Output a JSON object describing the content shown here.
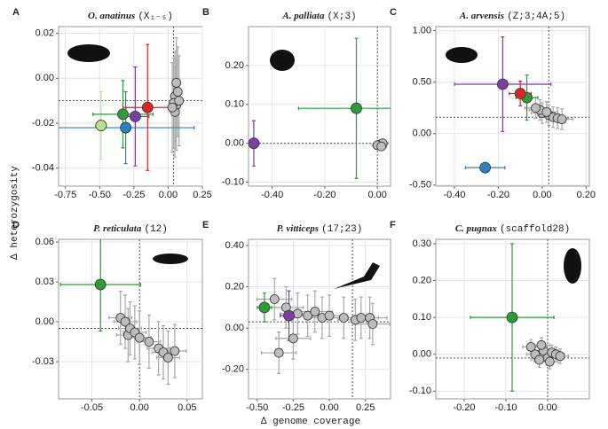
{
  "xlabel": "Δ genome coverage",
  "ylabel": "Δ heterozygosity",
  "chart_data": [
    {
      "type": "scatter",
      "letter": "A",
      "species": "O. anatinus",
      "chromosome": "(X₁₋₅)",
      "xlim": [
        -0.8,
        0.25
      ],
      "ylim": [
        -0.048,
        0.023
      ],
      "xticks": [
        {
          "value": -0.75,
          "label": "-0.75"
        },
        {
          "value": -0.5,
          "label": "-0.50"
        },
        {
          "value": -0.25,
          "label": "-0.25"
        },
        {
          "value": 0,
          "label": "0.00"
        },
        {
          "value": 0.25,
          "label": "0.25"
        }
      ],
      "yticks": [
        {
          "value": 0.02,
          "label": "0.02"
        },
        {
          "value": 0,
          "label": "0.00"
        },
        {
          "value": -0.02,
          "label": "-0.02"
        },
        {
          "value": -0.04,
          "label": "-0.04"
        }
      ],
      "vline": 0.04,
      "hline": -0.01,
      "grid": true,
      "points": [
        {
          "x": 0.05,
          "y": -0.008,
          "xerr": 0.03,
          "yerr": 0.02,
          "color": "#bdbdbd"
        },
        {
          "x": 0.06,
          "y": -0.012,
          "xerr": 0.03,
          "yerr": 0.02,
          "color": "#bdbdbd"
        },
        {
          "x": 0.04,
          "y": -0.011,
          "xerr": 0.03,
          "yerr": 0.02,
          "color": "#bdbdbd"
        },
        {
          "x": 0.07,
          "y": -0.006,
          "xerr": 0.03,
          "yerr": 0.02,
          "color": "#bdbdbd"
        },
        {
          "x": 0.05,
          "y": -0.015,
          "xerr": 0.03,
          "yerr": 0.02,
          "color": "#bdbdbd"
        },
        {
          "x": 0.03,
          "y": -0.013,
          "xerr": 0.03,
          "yerr": 0.02,
          "color": "#bdbdbd"
        },
        {
          "x": 0.06,
          "y": -0.002,
          "xerr": 0.03,
          "yerr": 0.02,
          "color": "#bdbdbd"
        },
        {
          "x": 0.08,
          "y": -0.01,
          "xerr": 0.03,
          "yerr": 0.02,
          "color": "#bdbdbd"
        },
        {
          "x": -0.31,
          "y": -0.022,
          "xerr": 0.5,
          "yerr": 0.016,
          "color": "#2f7fc1"
        },
        {
          "x": -0.49,
          "y": -0.021,
          "xerr": 0.04,
          "yerr": 0.015,
          "color": "#b9e08c"
        },
        {
          "x": -0.33,
          "y": -0.016,
          "xerr": 0.22,
          "yerr": 0.015,
          "color": "#2e9a3a"
        },
        {
          "x": -0.24,
          "y": -0.017,
          "xerr": 0.1,
          "yerr": 0.022,
          "color": "#7b3fa0"
        },
        {
          "x": -0.15,
          "y": -0.013,
          "xerr": 0.18,
          "yerr": 0.028,
          "color": "#d62728"
        }
      ]
    },
    {
      "type": "scatter",
      "letter": "B",
      "species": "A. palliata",
      "chromosome": "(X;3)",
      "xlim": [
        -0.49,
        0.05
      ],
      "ylim": [
        -0.11,
        0.3
      ],
      "xticks": [
        {
          "value": -0.4,
          "label": "-0.40"
        },
        {
          "value": -0.2,
          "label": "-0.20"
        },
        {
          "value": 0,
          "label": "0.00"
        }
      ],
      "yticks": [
        {
          "value": 0.2,
          "label": "0.20"
        },
        {
          "value": 0.1,
          "label": "0.10"
        },
        {
          "value": 0,
          "label": "0.00"
        },
        {
          "value": -0.1,
          "label": "-0.10"
        }
      ],
      "vline": 0,
      "hline": 0,
      "grid": true,
      "points": [
        {
          "x": 0.01,
          "y": -0.003,
          "xerr": 0.02,
          "yerr": 0.01,
          "color": "#bdbdbd"
        },
        {
          "x": 0.02,
          "y": 0,
          "xerr": 0.02,
          "yerr": 0.01,
          "color": "#bdbdbd"
        },
        {
          "x": 0,
          "y": -0.005,
          "xerr": 0.02,
          "yerr": 0.01,
          "color": "#bdbdbd"
        },
        {
          "x": 0.015,
          "y": -0.008,
          "xerr": 0.02,
          "yerr": 0.01,
          "color": "#bdbdbd"
        },
        {
          "x": -0.47,
          "y": 0,
          "xerr": 0.02,
          "yerr": 0.058,
          "color": "#7b3fa0"
        },
        {
          "x": -0.08,
          "y": 0.09,
          "xerr": 0.22,
          "yerr": 0.18,
          "color": "#2e9a3a"
        }
      ]
    },
    {
      "type": "scatter",
      "letter": "C",
      "species": "A. arvensis",
      "chromosome": "(Z;3;4A;5)",
      "xlim": [
        -0.485,
        0.215
      ],
      "ylim": [
        -0.51,
        1.04
      ],
      "xticks": [
        {
          "value": -0.4,
          "label": "-0.40"
        },
        {
          "value": -0.2,
          "label": "-0.20"
        },
        {
          "value": 0,
          "label": "0.00"
        },
        {
          "value": 0.2,
          "label": "0.20"
        }
      ],
      "yticks": [
        {
          "value": 1,
          "label": "1.00"
        },
        {
          "value": 0.5,
          "label": "0.50"
        },
        {
          "value": 0,
          "label": "0.00"
        },
        {
          "value": -0.5,
          "label": "-0.50"
        }
      ],
      "vline": 0.03,
      "hline": 0.16,
      "grid": true,
      "points": [
        {
          "x": 0,
          "y": 0.2,
          "xerr": 0.05,
          "yerr": 0.1,
          "color": "#bdbdbd"
        },
        {
          "x": 0.03,
          "y": 0.18,
          "xerr": 0.05,
          "yerr": 0.1,
          "color": "#bdbdbd"
        },
        {
          "x": 0.05,
          "y": 0.16,
          "xerr": 0.05,
          "yerr": 0.1,
          "color": "#bdbdbd"
        },
        {
          "x": -0.01,
          "y": 0.23,
          "xerr": 0.05,
          "yerr": 0.1,
          "color": "#bdbdbd"
        },
        {
          "x": 0.07,
          "y": 0.15,
          "xerr": 0.05,
          "yerr": 0.1,
          "color": "#bdbdbd"
        },
        {
          "x": 0.02,
          "y": 0.21,
          "xerr": 0.05,
          "yerr": 0.1,
          "color": "#bdbdbd"
        },
        {
          "x": 0.09,
          "y": 0.14,
          "xerr": 0.05,
          "yerr": 0.1,
          "color": "#bdbdbd"
        },
        {
          "x": -0.03,
          "y": 0.25,
          "xerr": 0.05,
          "yerr": 0.1,
          "color": "#bdbdbd"
        },
        {
          "x": -0.18,
          "y": 0.48,
          "xerr": 0.22,
          "yerr": 0.46,
          "color": "#7b3fa0"
        },
        {
          "x": -0.07,
          "y": 0.35,
          "xerr": 0.05,
          "yerr": 0.22,
          "color": "#2e9a3a"
        },
        {
          "x": -0.1,
          "y": 0.39,
          "xerr": 0.05,
          "yerr": 0.12,
          "color": "#d62728"
        },
        {
          "x": -0.26,
          "y": -0.33,
          "xerr": 0.09,
          "yerr": 0.05,
          "color": "#2f7fc1"
        }
      ]
    },
    {
      "type": "scatter",
      "letter": "D",
      "species": "P. reticulata",
      "chromosome": "(12)",
      "xlim": [
        -0.085,
        0.066
      ],
      "ylim": [
        -0.058,
        0.062
      ],
      "xticks": [
        {
          "value": -0.05,
          "label": "-0.05"
        },
        {
          "value": 0,
          "label": "0.00"
        },
        {
          "value": 0.05,
          "label": "0.05"
        }
      ],
      "yticks": [
        {
          "value": 0.06,
          "label": "0.06"
        },
        {
          "value": 0.03,
          "label": "0.03"
        },
        {
          "value": 0,
          "label": "0.00"
        },
        {
          "value": -0.03,
          "label": "-0.03"
        }
      ],
      "vline": 0,
      "hline": -0.005,
      "grid": true,
      "points": [
        {
          "x": -0.02,
          "y": 0.003,
          "xerr": 0.012,
          "yerr": 0.02,
          "color": "#bdbdbd"
        },
        {
          "x": -0.015,
          "y": 0,
          "xerr": 0.012,
          "yerr": 0.02,
          "color": "#bdbdbd"
        },
        {
          "x": -0.012,
          "y": -0.01,
          "xerr": 0.012,
          "yerr": 0.02,
          "color": "#bdbdbd"
        },
        {
          "x": -0.01,
          "y": -0.005,
          "xerr": 0.012,
          "yerr": 0.02,
          "color": "#bdbdbd"
        },
        {
          "x": -0.005,
          "y": -0.008,
          "xerr": 0.012,
          "yerr": 0.02,
          "color": "#bdbdbd"
        },
        {
          "x": 0,
          "y": -0.012,
          "xerr": 0.012,
          "yerr": 0.02,
          "color": "#bdbdbd"
        },
        {
          "x": 0.01,
          "y": -0.015,
          "xerr": 0.012,
          "yerr": 0.02,
          "color": "#bdbdbd"
        },
        {
          "x": 0.02,
          "y": -0.02,
          "xerr": 0.012,
          "yerr": 0.02,
          "color": "#bdbdbd"
        },
        {
          "x": 0.025,
          "y": -0.023,
          "xerr": 0.012,
          "yerr": 0.02,
          "color": "#bdbdbd"
        },
        {
          "x": 0.03,
          "y": -0.027,
          "xerr": 0.012,
          "yerr": 0.02,
          "color": "#bdbdbd"
        },
        {
          "x": 0.037,
          "y": -0.022,
          "xerr": 0.012,
          "yerr": 0.02,
          "color": "#bdbdbd"
        },
        {
          "x": -0.041,
          "y": 0.028,
          "xerr": 0.042,
          "yerr": 0.035,
          "color": "#2e9a3a"
        }
      ]
    },
    {
      "type": "scatter",
      "letter": "E",
      "species": "P. vitticeps",
      "chromosome": "(17;23)",
      "xlim": [
        -0.56,
        0.424
      ],
      "ylim": [
        -0.343,
        0.43
      ],
      "xticks": [
        {
          "value": -0.5,
          "label": "-0.50"
        },
        {
          "value": -0.25,
          "label": "-0.25"
        },
        {
          "value": 0,
          "label": "0.00"
        },
        {
          "value": 0.25,
          "label": "0.25"
        }
      ],
      "yticks": [
        {
          "value": 0.4,
          "label": "0.40"
        },
        {
          "value": 0.2,
          "label": "0.20"
        },
        {
          "value": 0,
          "label": "0.00"
        },
        {
          "value": -0.2,
          "label": "-0.20"
        }
      ],
      "vline": 0.16,
      "hline": 0.03,
      "grid": true,
      "points": [
        {
          "x": -0.38,
          "y": 0.14,
          "xerr": 0.12,
          "yerr": 0.1,
          "color": "#bdbdbd"
        },
        {
          "x": -0.3,
          "y": 0.1,
          "xerr": 0.12,
          "yerr": 0.1,
          "color": "#bdbdbd"
        },
        {
          "x": -0.22,
          "y": 0.07,
          "xerr": 0.12,
          "yerr": 0.1,
          "color": "#bdbdbd"
        },
        {
          "x": -0.15,
          "y": 0.06,
          "xerr": 0.12,
          "yerr": 0.1,
          "color": "#bdbdbd"
        },
        {
          "x": -0.05,
          "y": 0.05,
          "xerr": 0.12,
          "yerr": 0.1,
          "color": "#bdbdbd"
        },
        {
          "x": 0,
          "y": 0.06,
          "xerr": 0.12,
          "yerr": 0.1,
          "color": "#bdbdbd"
        },
        {
          "x": 0.1,
          "y": 0.05,
          "xerr": 0.12,
          "yerr": 0.1,
          "color": "#bdbdbd"
        },
        {
          "x": 0.18,
          "y": 0.04,
          "xerr": 0.12,
          "yerr": 0.1,
          "color": "#bdbdbd"
        },
        {
          "x": 0.22,
          "y": 0.05,
          "xerr": 0.12,
          "yerr": 0.1,
          "color": "#bdbdbd"
        },
        {
          "x": 0.28,
          "y": 0.05,
          "xerr": 0.12,
          "yerr": 0.1,
          "color": "#bdbdbd"
        },
        {
          "x": 0.3,
          "y": 0.02,
          "xerr": 0.12,
          "yerr": 0.1,
          "color": "#bdbdbd"
        },
        {
          "x": -0.1,
          "y": 0.08,
          "xerr": 0.12,
          "yerr": 0.1,
          "color": "#bdbdbd"
        },
        {
          "x": -0.35,
          "y": -0.12,
          "xerr": 0.12,
          "yerr": 0.1,
          "color": "#bdbdbd"
        },
        {
          "x": -0.25,
          "y": -0.05,
          "xerr": 0.12,
          "yerr": 0.1,
          "color": "#bdbdbd"
        },
        {
          "x": -0.45,
          "y": 0.1,
          "xerr": 0.05,
          "yerr": 0.07,
          "color": "#2e9a3a"
        },
        {
          "x": -0.28,
          "y": 0.06,
          "xerr": 0.06,
          "yerr": 0.12,
          "color": "#7b3fa0"
        }
      ]
    },
    {
      "type": "scatter",
      "letter": "F",
      "species": "C. pugnax",
      "chromosome": "(scaffold28)",
      "xlim": [
        -0.268,
        0.1
      ],
      "ylim": [
        -0.121,
        0.312
      ],
      "xticks": [
        {
          "value": -0.2,
          "label": "-0.20"
        },
        {
          "value": -0.1,
          "label": "-0.10"
        },
        {
          "value": 0,
          "label": "0.00"
        }
      ],
      "yticks": [
        {
          "value": 0.3,
          "label": "0.30"
        },
        {
          "value": 0.2,
          "label": "0.20"
        },
        {
          "value": 0.1,
          "label": "0.10"
        },
        {
          "value": 0,
          "label": "0.00"
        },
        {
          "value": -0.1,
          "label": "-0.10"
        }
      ],
      "vline": 0,
      "hline": -0.01,
      "grid": true,
      "points": [
        {
          "x": -0.03,
          "y": 0,
          "xerr": 0.02,
          "yerr": 0.02,
          "color": "#bdbdbd"
        },
        {
          "x": -0.01,
          "y": 0.01,
          "xerr": 0.02,
          "yerr": 0.02,
          "color": "#bdbdbd"
        },
        {
          "x": 0,
          "y": -0.01,
          "xerr": 0.02,
          "yerr": 0.02,
          "color": "#bdbdbd"
        },
        {
          "x": 0.01,
          "y": 0.005,
          "xerr": 0.02,
          "yerr": 0.02,
          "color": "#bdbdbd"
        },
        {
          "x": -0.02,
          "y": -0.015,
          "xerr": 0.02,
          "yerr": 0.02,
          "color": "#bdbdbd"
        },
        {
          "x": 0.02,
          "y": 0,
          "xerr": 0.02,
          "yerr": 0.02,
          "color": "#bdbdbd"
        },
        {
          "x": -0.04,
          "y": 0.02,
          "xerr": 0.02,
          "yerr": 0.02,
          "color": "#bdbdbd"
        },
        {
          "x": 0.03,
          "y": -0.005,
          "xerr": 0.02,
          "yerr": 0.02,
          "color": "#bdbdbd"
        },
        {
          "x": -0.015,
          "y": 0.025,
          "xerr": 0.02,
          "yerr": 0.02,
          "color": "#bdbdbd"
        },
        {
          "x": 0.005,
          "y": -0.02,
          "xerr": 0.02,
          "yerr": 0.02,
          "color": "#bdbdbd"
        },
        {
          "x": -0.085,
          "y": 0.1,
          "xerr": 0.1,
          "yerr": 0.2,
          "color": "#2e9a3a"
        }
      ]
    }
  ]
}
